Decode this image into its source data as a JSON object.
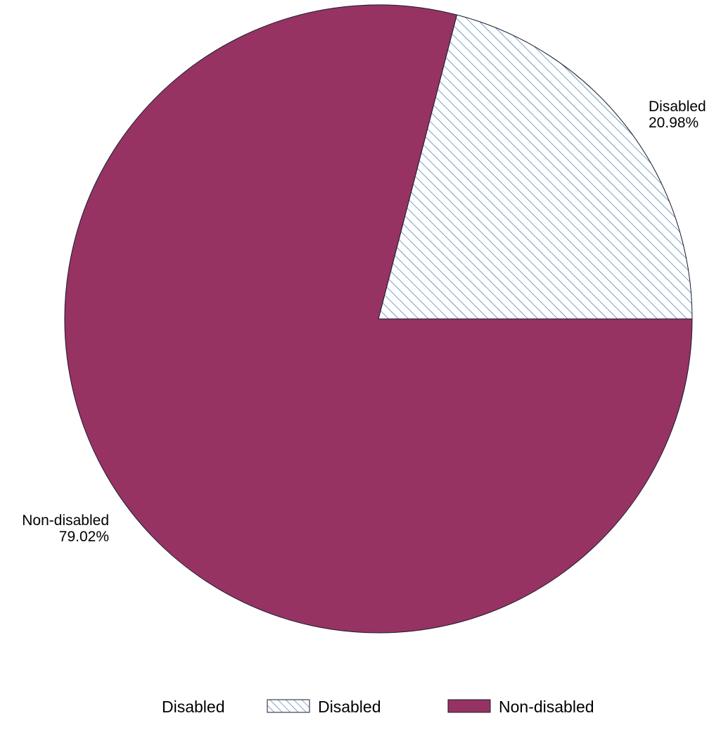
{
  "chart_data": {
    "type": "pie",
    "slices": [
      {
        "name": "Disabled",
        "value": 20.98,
        "label_name": "Disabled",
        "label_value": "20.98%",
        "fill": "hatch",
        "color": "#2f6fa7"
      },
      {
        "name": "Non-disabled",
        "value": 79.02,
        "label_name": "Non-disabled",
        "label_value": "79.02%",
        "fill": "solid",
        "color": "#963363"
      }
    ],
    "legend": {
      "title": "Disabled",
      "placement": "bottom",
      "entries": [
        "Disabled",
        "Non-disabled"
      ]
    }
  },
  "colors": {
    "outline": "#1a1a2e",
    "hatch_line": "#2f6fa7",
    "background": "#ffffff"
  }
}
